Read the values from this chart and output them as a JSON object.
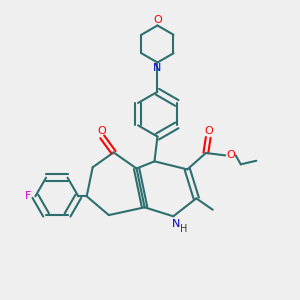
{
  "bg_color": "#efefef",
  "bc": "#2d6e6e",
  "oc": "#ff0000",
  "nc": "#0000cc",
  "fc": "#cc00cc",
  "lw": 1.5,
  "fs": 7.5,
  "xlim": [
    0,
    10
  ],
  "ylim": [
    0,
    10
  ]
}
